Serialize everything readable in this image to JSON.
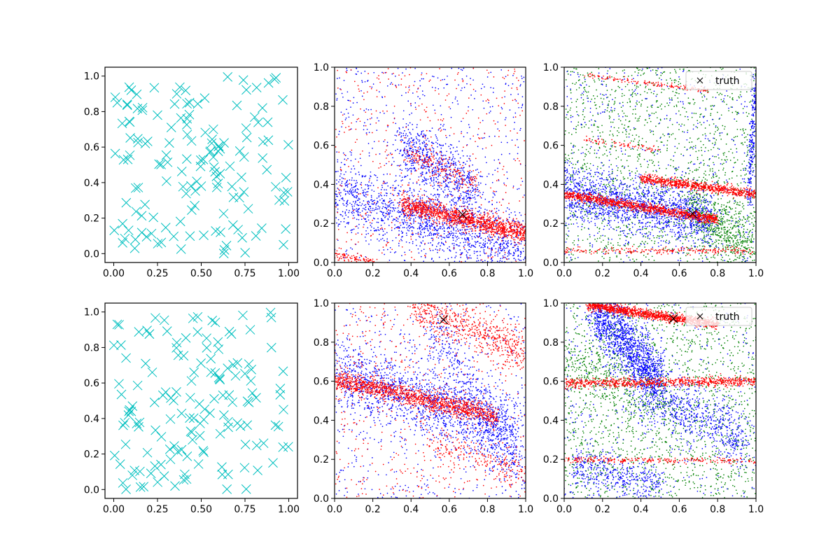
{
  "chart_data": [
    {
      "type": "scatter",
      "xlim": [
        -0.05,
        1.05
      ],
      "ylim": [
        -0.05,
        1.05
      ],
      "xticks": [
        "0.00",
        "0.25",
        "0.50",
        "0.75",
        "1.00"
      ],
      "yticks": [
        "0.0",
        "0.2",
        "0.4",
        "0.6",
        "0.8",
        "1.0"
      ],
      "grid": false,
      "series": [
        {
          "kind": "points",
          "marker": "x",
          "color": "#00bfbf",
          "count": 150,
          "seed": 11,
          "points": [
            [
              0.02,
              0.85
            ],
            [
              0.12,
              0.03
            ],
            [
              0.25,
              0.78
            ],
            [
              0.5,
              0.38
            ],
            [
              0.73,
              0.43
            ],
            [
              0.88,
              0.74
            ],
            [
              0.97,
              0.05
            ],
            [
              0.36,
              0.9
            ],
            [
              0.61,
              0.12
            ],
            [
              0.18,
              0.62
            ]
          ]
        }
      ]
    },
    {
      "type": "scatter",
      "xlim": [
        0,
        1
      ],
      "ylim": [
        0,
        1
      ],
      "xticks": [
        "0.0",
        "0.2",
        "0.4",
        "0.6",
        "0.8",
        "1.0"
      ],
      "yticks": [
        "0.0",
        "0.2",
        "0.4",
        "0.6",
        "0.8",
        "1.0"
      ],
      "grid": false,
      "series": [
        {
          "kind": "band",
          "color": "#0000ff",
          "count": 1400,
          "x": [
            0.0,
            1.0
          ],
          "y": [
            0.36,
            0.05
          ],
          "spread": 0.08,
          "seed": 21
        },
        {
          "kind": "band",
          "color": "#0000ff",
          "count": 700,
          "x": [
            0.35,
            0.75
          ],
          "y": [
            0.6,
            0.35
          ],
          "spread": 0.08,
          "seed": 22
        },
        {
          "kind": "uniform",
          "color": "#0000ff",
          "count": 600,
          "seed": 23
        },
        {
          "kind": "band",
          "color": "#ff0000",
          "count": 1300,
          "x": [
            0.35,
            1.0
          ],
          "y": [
            0.3,
            0.15
          ],
          "spread": 0.025,
          "seed": 24
        },
        {
          "kind": "band",
          "color": "#ff0000",
          "count": 180,
          "x": [
            0.4,
            0.75
          ],
          "y": [
            0.55,
            0.4
          ],
          "spread": 0.03,
          "seed": 25
        },
        {
          "kind": "band",
          "color": "#ff0000",
          "count": 80,
          "x": [
            0.0,
            0.2
          ],
          "y": [
            0.04,
            0.0
          ],
          "spread": 0.01,
          "seed": 26
        },
        {
          "kind": "uniform",
          "color": "#ff0000",
          "count": 500,
          "seed": 27
        }
      ],
      "truth": {
        "x": 0.67,
        "y": 0.245
      }
    },
    {
      "type": "scatter",
      "xlim": [
        0,
        1
      ],
      "ylim": [
        0,
        1
      ],
      "xticks": [
        "0.0",
        "0.2",
        "0.4",
        "0.6",
        "0.8",
        "1.0"
      ],
      "yticks": [
        "0.0",
        "0.2",
        "0.4",
        "0.6",
        "0.8",
        "1.0"
      ],
      "grid": false,
      "legend": {
        "label": "truth",
        "position": "upper right"
      },
      "series": [
        {
          "kind": "uniform",
          "color": "#008000",
          "count": 1600,
          "seed": 31
        },
        {
          "kind": "band",
          "color": "#008000",
          "count": 600,
          "x": [
            0.65,
            1.0
          ],
          "y": [
            0.3,
            0.05
          ],
          "spread": 0.08,
          "seed": 32
        },
        {
          "kind": "band",
          "color": "#0000ff",
          "count": 1600,
          "x": [
            0.0,
            0.75
          ],
          "y": [
            0.36,
            0.22
          ],
          "spread": 0.07,
          "seed": 33
        },
        {
          "kind": "uniform",
          "color": "#0000ff",
          "count": 500,
          "seed": 34
        },
        {
          "kind": "band",
          "color": "#0000ff",
          "count": 250,
          "x": [
            0.96,
            1.0
          ],
          "y": [
            0.3,
            0.95
          ],
          "spread": 0.03,
          "seed": 35
        },
        {
          "kind": "band",
          "color": "#ff0000",
          "count": 1100,
          "x": [
            0.0,
            0.8
          ],
          "y": [
            0.35,
            0.22
          ],
          "spread": 0.012,
          "seed": 36
        },
        {
          "kind": "band",
          "color": "#ff0000",
          "count": 800,
          "x": [
            0.4,
            1.0
          ],
          "y": [
            0.43,
            0.35
          ],
          "spread": 0.012,
          "seed": 37
        },
        {
          "kind": "band",
          "color": "#ff0000",
          "count": 220,
          "x": [
            0.0,
            1.0
          ],
          "y": [
            0.06,
            0.06
          ],
          "spread": 0.008,
          "seed": 38
        },
        {
          "kind": "band",
          "color": "#ff0000",
          "count": 150,
          "x": [
            0.1,
            0.75
          ],
          "y": [
            0.96,
            0.88
          ],
          "spread": 0.006,
          "seed": 39
        },
        {
          "kind": "band",
          "color": "#ff0000",
          "count": 70,
          "x": [
            0.1,
            0.5
          ],
          "y": [
            0.63,
            0.58
          ],
          "spread": 0.008,
          "seed": 40
        }
      ],
      "truth": {
        "x": 0.67,
        "y": 0.25
      }
    },
    {
      "type": "scatter",
      "xlim": [
        -0.05,
        1.05
      ],
      "ylim": [
        -0.05,
        1.05
      ],
      "xticks": [
        "0.00",
        "0.25",
        "0.50",
        "0.75",
        "1.00"
      ],
      "yticks": [
        "0.0",
        "0.2",
        "0.4",
        "0.6",
        "0.8",
        "1.0"
      ],
      "grid": false,
      "series": [
        {
          "kind": "points",
          "marker": "x",
          "color": "#00bfbf",
          "count": 150,
          "seed": 12,
          "points": [
            [
              0.02,
              0.93
            ],
            [
              0.35,
              0.02
            ],
            [
              0.55,
              0.43
            ],
            [
              0.91,
              0.15
            ],
            [
              0.22,
              0.66
            ],
            [
              0.78,
              0.9
            ],
            [
              0.1,
              0.44
            ],
            [
              0.6,
              0.63
            ],
            [
              0.97,
              0.45
            ],
            [
              0.45,
              0.28
            ]
          ]
        }
      ]
    },
    {
      "type": "scatter",
      "xlim": [
        0,
        1
      ],
      "ylim": [
        0,
        1
      ],
      "xticks": [
        "0.0",
        "0.2",
        "0.4",
        "0.6",
        "0.8",
        "1.0"
      ],
      "yticks": [
        "0.0",
        "0.2",
        "0.4",
        "0.6",
        "0.8",
        "1.0"
      ],
      "grid": false,
      "series": [
        {
          "kind": "band",
          "color": "#0000ff",
          "count": 1500,
          "x": [
            0.0,
            0.95
          ],
          "y": [
            0.64,
            0.33
          ],
          "spread": 0.09,
          "seed": 51
        },
        {
          "kind": "band",
          "color": "#0000ff",
          "count": 500,
          "x": [
            0.5,
            1.0
          ],
          "y": [
            0.85,
            0.15
          ],
          "spread": 0.1,
          "seed": 52
        },
        {
          "kind": "uniform",
          "color": "#0000ff",
          "count": 500,
          "seed": 53
        },
        {
          "kind": "band",
          "color": "#ff0000",
          "count": 1300,
          "x": [
            0.0,
            0.85
          ],
          "y": [
            0.61,
            0.42
          ],
          "spread": 0.025,
          "seed": 54
        },
        {
          "kind": "band",
          "color": "#ff0000",
          "count": 600,
          "x": [
            0.4,
            1.0
          ],
          "y": [
            0.99,
            0.75
          ],
          "spread": 0.05,
          "seed": 55
        },
        {
          "kind": "band",
          "color": "#ff0000",
          "count": 200,
          "x": [
            0.5,
            1.0
          ],
          "y": [
            0.3,
            0.12
          ],
          "spread": 0.04,
          "seed": 56
        },
        {
          "kind": "uniform",
          "color": "#ff0000",
          "count": 550,
          "seed": 57
        }
      ],
      "truth": {
        "x": 0.57,
        "y": 0.915
      }
    },
    {
      "type": "scatter",
      "xlim": [
        0,
        1
      ],
      "ylim": [
        0,
        1
      ],
      "xticks": [
        "0.0",
        "0.2",
        "0.4",
        "0.6",
        "0.8",
        "1.0"
      ],
      "yticks": [
        "0.0",
        "0.2",
        "0.4",
        "0.6",
        "0.8",
        "1.0"
      ],
      "grid": false,
      "legend": {
        "label": "truth",
        "position": "upper right"
      },
      "series": [
        {
          "kind": "uniform",
          "color": "#008000",
          "count": 1700,
          "seed": 61
        },
        {
          "kind": "band",
          "color": "#008000",
          "count": 400,
          "x": [
            0.0,
            0.6
          ],
          "y": [
            0.7,
            0.45
          ],
          "spread": 0.08,
          "seed": 62
        },
        {
          "kind": "band",
          "color": "#0000ff",
          "count": 1400,
          "x": [
            0.15,
            0.5
          ],
          "y": [
            0.98,
            0.6
          ],
          "spread": 0.08,
          "seed": 63
        },
        {
          "kind": "band",
          "color": "#0000ff",
          "count": 700,
          "x": [
            0.4,
            0.95
          ],
          "y": [
            0.55,
            0.3
          ],
          "spread": 0.08,
          "seed": 64
        },
        {
          "kind": "band",
          "color": "#0000ff",
          "count": 400,
          "x": [
            0.05,
            0.5
          ],
          "y": [
            0.15,
            0.08
          ],
          "spread": 0.05,
          "seed": 65
        },
        {
          "kind": "uniform",
          "color": "#0000ff",
          "count": 400,
          "seed": 66
        },
        {
          "kind": "band",
          "color": "#ff0000",
          "count": 1200,
          "x": [
            0.12,
            0.8
          ],
          "y": [
            0.99,
            0.89
          ],
          "spread": 0.012,
          "seed": 67
        },
        {
          "kind": "band",
          "color": "#ff0000",
          "count": 800,
          "x": [
            0.0,
            1.0
          ],
          "y": [
            0.59,
            0.6
          ],
          "spread": 0.012,
          "seed": 68
        },
        {
          "kind": "band",
          "color": "#ff0000",
          "count": 250,
          "x": [
            0.0,
            1.0
          ],
          "y": [
            0.2,
            0.19
          ],
          "spread": 0.008,
          "seed": 69
        }
      ],
      "truth": {
        "x": 0.57,
        "y": 0.92
      }
    }
  ]
}
